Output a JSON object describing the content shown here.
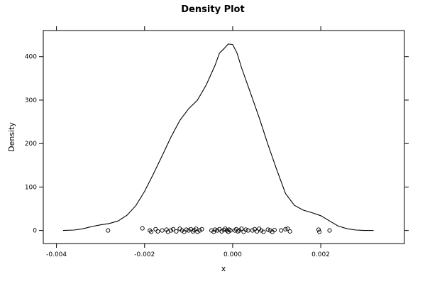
{
  "chart_data": {
    "type": "line",
    "title": "Density Plot",
    "xlabel": "x",
    "ylabel": "Density",
    "xlim": [
      -0.0043,
      0.0039
    ],
    "ylim": [
      -30,
      460
    ],
    "grid": false,
    "legend": "none",
    "x_ticks": [
      {
        "value": -0.004,
        "label": "-0.004"
      },
      {
        "value": -0.002,
        "label": "-0.002"
      },
      {
        "value": 0.0,
        "label": "0.000"
      },
      {
        "value": 0.002,
        "label": "0.002"
      }
    ],
    "y_ticks": [
      {
        "value": 0,
        "label": "0"
      },
      {
        "value": 100,
        "label": "100"
      },
      {
        "value": 200,
        "label": "200"
      },
      {
        "value": 300,
        "label": "300"
      },
      {
        "value": 400,
        "label": "400"
      }
    ],
    "series": [
      {
        "x": [
          -0.00385,
          -0.0036,
          -0.0034,
          -0.0032,
          -0.003,
          -0.0028,
          -0.0026,
          -0.0024,
          -0.0022,
          -0.002,
          -0.0018,
          -0.0016,
          -0.0014,
          -0.0012,
          -0.001,
          -0.0008,
          -0.0006,
          -0.0004,
          -0.0003,
          -0.0002,
          -0.0001,
          0.0,
          0.0001,
          0.0002,
          0.0004,
          0.0006,
          0.0008,
          0.001,
          0.0012,
          0.0014,
          0.0016,
          0.0018,
          0.002,
          0.0022,
          0.0024,
          0.0026,
          0.0028,
          0.003,
          0.0032
        ],
        "y": [
          0,
          1,
          4,
          9,
          13,
          16,
          22,
          35,
          57,
          90,
          130,
          172,
          215,
          253,
          280,
          300,
          335,
          380,
          408,
          418,
          429,
          428,
          408,
          375,
          318,
          260,
          198,
          140,
          85,
          58,
          47,
          41,
          34,
          22,
          10,
          4,
          1,
          0,
          0
        ]
      }
    ],
    "rug": {
      "x": [
        -0.00283,
        -0.00205,
        -0.00188,
        -0.00185,
        -0.00175,
        -0.0017,
        -0.0016,
        -0.0015,
        -0.00147,
        -0.0014,
        -0.00135,
        -0.00128,
        -0.0012,
        -0.00115,
        -0.0011,
        -0.00105,
        -0.001,
        -0.00095,
        -0.0009,
        -0.00087,
        -0.00083,
        -0.0008,
        -0.00075,
        -0.0007,
        -0.00048,
        -0.00043,
        -0.0004,
        -0.00035,
        -0.0003,
        -0.00025,
        -0.0002,
        -0.00017,
        -0.00013,
        -0.0001,
        -8e-05,
        -5e-05,
        5e-05,
        8e-05,
        0.00012,
        0.00015,
        0.0002,
        0.00025,
        0.0003,
        0.00035,
        0.00045,
        0.0005,
        0.00055,
        0.0006,
        0.00065,
        0.0007,
        0.0008,
        0.00085,
        0.0009,
        0.00095,
        0.0011,
        0.0012,
        0.00125,
        0.0013,
        0.00195,
        0.00197,
        0.0022
      ],
      "y": [
        0,
        5,
        0,
        -3,
        3,
        -2,
        0,
        2,
        -3,
        0,
        3,
        -2,
        4,
        0,
        -3,
        2,
        0,
        3,
        -2,
        1,
        4,
        -3,
        0,
        3,
        0,
        -3,
        2,
        0,
        3,
        -2,
        1,
        4,
        0,
        -3,
        2,
        0,
        0,
        3,
        -2,
        0,
        4,
        -3,
        2,
        0,
        0,
        3,
        -2,
        4,
        0,
        -3,
        2,
        0,
        -3,
        1,
        0,
        3,
        4,
        -2,
        2,
        -3,
        0
      ]
    }
  }
}
